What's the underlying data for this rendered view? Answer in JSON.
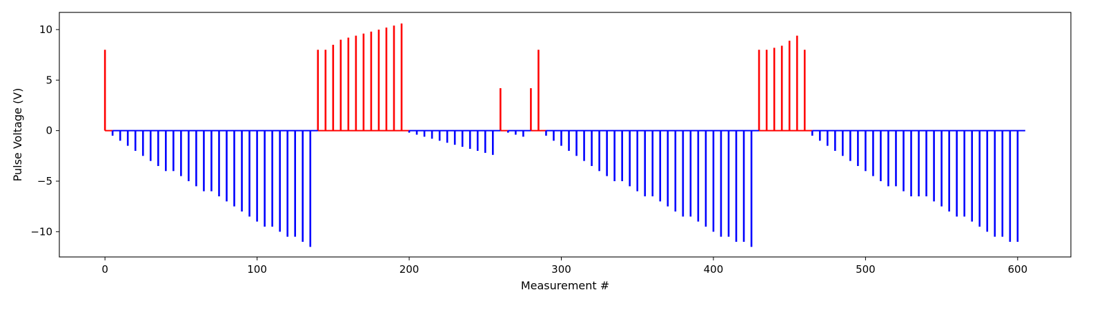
{
  "chart_data": {
    "type": "bar",
    "subtype": "stem",
    "xlabel": "Measurement #",
    "ylabel": "Pulse Voltage (V)",
    "xlim": [
      -30,
      635
    ],
    "ylim": [
      -12.5,
      11.7
    ],
    "xticks": [
      0,
      100,
      200,
      300,
      400,
      500,
      600
    ],
    "yticks": [
      -10,
      -5,
      0,
      5,
      10
    ],
    "grid": false,
    "colors": {
      "positive": "#ff0000",
      "negative": "#0000ff"
    },
    "series": [
      {
        "color": "#ff0000",
        "x": [
          0,
          140,
          145,
          150,
          155,
          160,
          165,
          170,
          175,
          180,
          185,
          190,
          195,
          260,
          280,
          285,
          430,
          435,
          440,
          445,
          450,
          455,
          460
        ],
        "values": [
          8.0,
          8.0,
          8.0,
          8.5,
          9.0,
          9.2,
          9.4,
          9.6,
          9.8,
          10.0,
          10.2,
          10.4,
          10.6,
          4.2,
          4.2,
          8.0,
          8.0,
          8.0,
          8.2,
          8.4,
          8.9,
          9.4,
          8.0
        ],
        "baseline_segments": [
          [
            0,
            5
          ],
          [
            140,
            200
          ],
          [
            260,
            265
          ],
          [
            280,
            290
          ],
          [
            430,
            465
          ]
        ]
      },
      {
        "color": "#0000ff",
        "x": [
          5,
          10,
          15,
          20,
          25,
          30,
          35,
          40,
          45,
          50,
          55,
          60,
          65,
          70,
          75,
          80,
          85,
          90,
          95,
          100,
          105,
          110,
          115,
          120,
          125,
          130,
          135,
          200,
          205,
          210,
          215,
          220,
          225,
          230,
          235,
          240,
          245,
          250,
          255,
          265,
          270,
          275,
          290,
          295,
          300,
          305,
          310,
          315,
          320,
          325,
          330,
          335,
          340,
          345,
          350,
          355,
          360,
          365,
          370,
          375,
          380,
          385,
          390,
          395,
          400,
          405,
          410,
          415,
          420,
          425,
          465,
          470,
          475,
          480,
          485,
          490,
          495,
          500,
          505,
          510,
          515,
          520,
          525,
          530,
          535,
          540,
          545,
          550,
          555,
          560,
          565,
          570,
          575,
          580,
          585,
          590,
          595,
          600
        ],
        "values": [
          -0.5,
          -1.0,
          -1.5,
          -2.0,
          -2.5,
          -3.0,
          -3.5,
          -4.0,
          -4.0,
          -4.5,
          -5.0,
          -5.5,
          -6.0,
          -6.0,
          -6.5,
          -7.0,
          -7.5,
          -8.0,
          -8.5,
          -9.0,
          -9.5,
          -9.5,
          -10.0,
          -10.5,
          -10.5,
          -11.0,
          -11.5,
          -0.2,
          -0.4,
          -0.6,
          -0.8,
          -1.0,
          -1.2,
          -1.4,
          -1.6,
          -1.8,
          -2.0,
          -2.2,
          -2.4,
          -0.2,
          -0.4,
          -0.6,
          -0.5,
          -1.0,
          -1.5,
          -2.0,
          -2.5,
          -3.0,
          -3.5,
          -4.0,
          -4.5,
          -5.0,
          -5.0,
          -5.5,
          -6.0,
          -6.5,
          -6.5,
          -7.0,
          -7.5,
          -8.0,
          -8.5,
          -8.5,
          -9.0,
          -9.5,
          -10.0,
          -10.5,
          -10.5,
          -11.0,
          -11.0,
          -11.5,
          -0.5,
          -1.0,
          -1.5,
          -2.0,
          -2.5,
          -3.0,
          -3.5,
          -4.0,
          -4.5,
          -5.0,
          -5.5,
          -5.5,
          -6.0,
          -6.5,
          -6.5,
          -6.5,
          -7.0,
          -7.5,
          -8.0,
          -8.5,
          -8.5,
          -9.0,
          -9.5,
          -10.0,
          -10.5,
          -10.5,
          -11.0,
          -11.0
        ],
        "baseline_segments": [
          [
            5,
            140
          ],
          [
            200,
            260
          ],
          [
            265,
            280
          ],
          [
            290,
            430
          ],
          [
            465,
            605
          ]
        ]
      }
    ]
  }
}
